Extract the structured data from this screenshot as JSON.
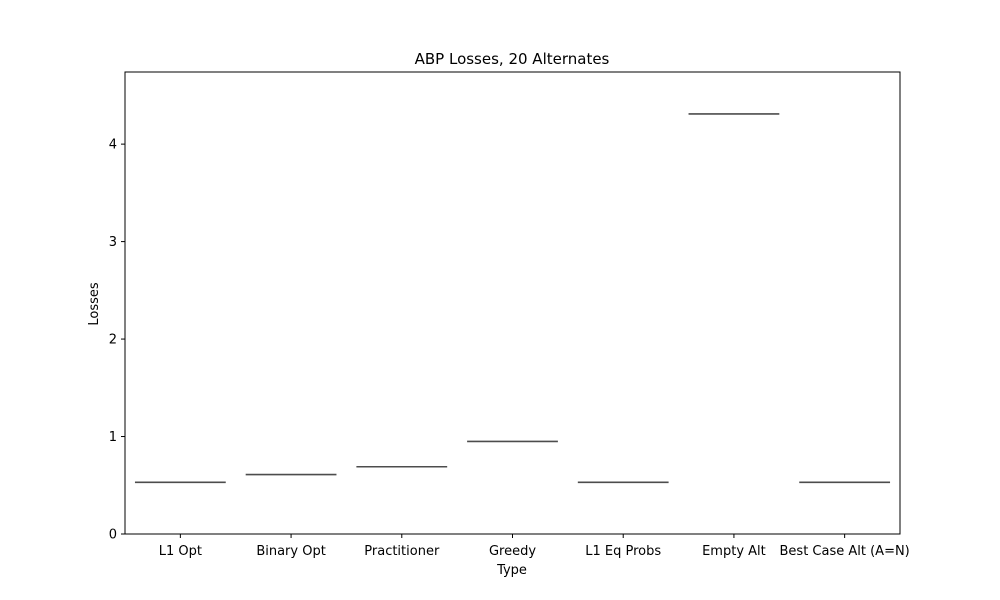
{
  "chart_data": {
    "type": "bar",
    "title": "ABP Losses, 20 Alternates",
    "xlabel": "Type",
    "ylabel": "Losses",
    "ylim": [
      0,
      4.74
    ],
    "yticks": [
      0,
      1,
      2,
      3,
      4
    ],
    "categories": [
      "L1 Opt",
      "Binary Opt",
      "Practitioner",
      "Greedy",
      "L1 Eq Probs",
      "Empty Alt",
      "Best Case Alt (A=N)"
    ],
    "values": [
      0.53,
      0.61,
      0.69,
      0.95,
      0.53,
      4.31,
      0.53
    ],
    "mark_style": "median-line (box plot with no spread)",
    "mark_color": "#4d4d4d",
    "grid": false,
    "legend": "none"
  }
}
